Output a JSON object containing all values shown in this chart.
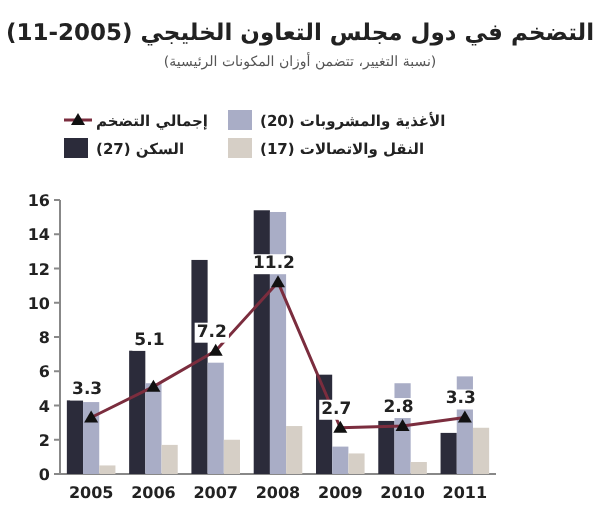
{
  "chart_data": {
    "type": "bar",
    "title": "التضخم في دول مجلس التعاون الخليجي (2005-11)",
    "subtitle": "(نسبة التغيير، تتضمن أوزان المكونات الرئيسية)",
    "categories": [
      "2005",
      "2006",
      "2007",
      "2008",
      "2009",
      "2010",
      "2011"
    ],
    "series": [
      {
        "name": "السكن (27)",
        "color": "#2b2b3a",
        "values": [
          4.3,
          7.2,
          12.5,
          15.4,
          5.8,
          3.1,
          2.4
        ]
      },
      {
        "name": "الأغذية والمشروبات (20)",
        "color": "#a9adc6",
        "values": [
          4.2,
          5.3,
          6.5,
          15.3,
          1.6,
          5.3,
          5.7
        ]
      },
      {
        "name": "النقل والاتصالات (17)",
        "color": "#d6cfc6",
        "values": [
          0.5,
          1.7,
          2.0,
          2.8,
          1.2,
          0.7,
          2.7
        ]
      },
      {
        "name": "إجمالي التضخم",
        "type": "line",
        "marker": "triangle",
        "color": "#7b2d3e",
        "values": [
          3.3,
          5.1,
          7.2,
          11.2,
          2.7,
          2.8,
          3.3
        ],
        "value_labels": [
          "3.3",
          "5.1",
          "7.2",
          "11.2",
          "2.7",
          "2.8",
          "3.3"
        ]
      }
    ],
    "ylim": [
      0,
      16
    ],
    "yticks": [
      0,
      2,
      4,
      6,
      8,
      10,
      12,
      14,
      16
    ],
    "legend": "top left"
  }
}
